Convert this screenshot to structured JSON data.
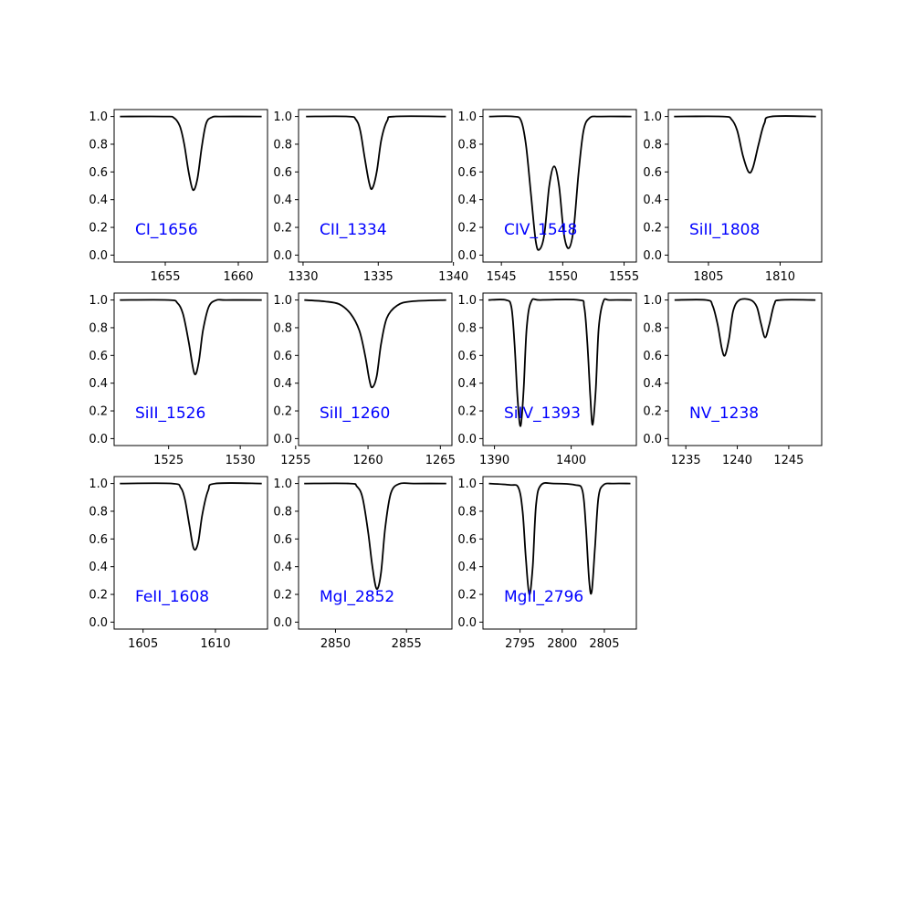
{
  "colors": {
    "line": "#000000",
    "label": "#0000ff",
    "frame": "#000000",
    "background": "#ffffff"
  },
  "chart_data": [
    {
      "type": "line",
      "label": "CI_1656",
      "xlim": [
        1651.5,
        1662.0
      ],
      "xticks": [
        1655,
        1660
      ],
      "ylim": [
        -0.05,
        1.05
      ],
      "yticks": [
        0.0,
        0.2,
        0.4,
        0.6,
        0.8,
        1.0
      ],
      "series": [
        {
          "values": [
            [
              1651.9,
              1.0
            ],
            [
              1655.0,
              1.0
            ],
            [
              1655.6,
              0.99
            ],
            [
              1656.0,
              0.93
            ],
            [
              1656.3,
              0.8
            ],
            [
              1656.6,
              0.6
            ],
            [
              1656.9,
              0.47
            ],
            [
              1657.2,
              0.55
            ],
            [
              1657.5,
              0.78
            ],
            [
              1657.8,
              0.95
            ],
            [
              1658.2,
              0.995
            ],
            [
              1658.8,
              1.0
            ],
            [
              1661.6,
              1.0
            ]
          ]
        }
      ]
    },
    {
      "type": "line",
      "label": "CII_1334",
      "xlim": [
        1329.7,
        1339.9
      ],
      "xticks": [
        1330,
        1335,
        1340
      ],
      "ylim": [
        -0.05,
        1.05
      ],
      "yticks": [
        0.0,
        0.2,
        0.4,
        0.6,
        0.8,
        1.0
      ],
      "series": [
        {
          "values": [
            [
              1330.2,
              1.0
            ],
            [
              1333.0,
              1.0
            ],
            [
              1333.5,
              0.98
            ],
            [
              1333.8,
              0.9
            ],
            [
              1334.1,
              0.7
            ],
            [
              1334.4,
              0.52
            ],
            [
              1334.6,
              0.48
            ],
            [
              1334.9,
              0.6
            ],
            [
              1335.2,
              0.83
            ],
            [
              1335.6,
              0.97
            ],
            [
              1336.1,
              1.0
            ],
            [
              1339.5,
              1.0
            ]
          ]
        }
      ]
    },
    {
      "type": "line",
      "label": "CIV_1548",
      "xlim": [
        1543.5,
        1556.0
      ],
      "xticks": [
        1545,
        1550,
        1555
      ],
      "ylim": [
        -0.05,
        1.05
      ],
      "yticks": [
        0.0,
        0.2,
        0.4,
        0.6,
        0.8,
        1.0
      ],
      "series": [
        {
          "values": [
            [
              1544.0,
              1.0
            ],
            [
              1546.0,
              1.0
            ],
            [
              1546.6,
              0.97
            ],
            [
              1547.0,
              0.8
            ],
            [
              1547.4,
              0.45
            ],
            [
              1547.8,
              0.1
            ],
            [
              1548.1,
              0.04
            ],
            [
              1548.5,
              0.15
            ],
            [
              1548.9,
              0.5
            ],
            [
              1549.3,
              0.64
            ],
            [
              1549.7,
              0.5
            ],
            [
              1550.1,
              0.15
            ],
            [
              1550.5,
              0.05
            ],
            [
              1550.9,
              0.2
            ],
            [
              1551.3,
              0.6
            ],
            [
              1551.7,
              0.9
            ],
            [
              1552.2,
              0.99
            ],
            [
              1553.0,
              1.0
            ],
            [
              1555.6,
              1.0
            ]
          ]
        }
      ]
    },
    {
      "type": "line",
      "label": "SiII_1808",
      "xlim": [
        1802.2,
        1812.9
      ],
      "xticks": [
        1805,
        1810
      ],
      "ylim": [
        -0.05,
        1.05
      ],
      "yticks": [
        0.0,
        0.2,
        0.4,
        0.6,
        0.8,
        1.0
      ],
      "series": [
        {
          "values": [
            [
              1802.6,
              1.0
            ],
            [
              1806.0,
              1.0
            ],
            [
              1806.6,
              0.98
            ],
            [
              1807.0,
              0.9
            ],
            [
              1807.4,
              0.72
            ],
            [
              1807.8,
              0.6
            ],
            [
              1808.1,
              0.63
            ],
            [
              1808.5,
              0.8
            ],
            [
              1808.9,
              0.95
            ],
            [
              1809.4,
              1.0
            ],
            [
              1812.5,
              1.0
            ]
          ]
        }
      ]
    },
    {
      "type": "line",
      "label": "SiII_1526",
      "xlim": [
        1521.2,
        1531.9
      ],
      "xticks": [
        1525,
        1530
      ],
      "ylim": [
        -0.05,
        1.05
      ],
      "yticks": [
        0.0,
        0.2,
        0.4,
        0.6,
        0.8,
        1.0
      ],
      "series": [
        {
          "values": [
            [
              1521.6,
              1.0
            ],
            [
              1525.0,
              1.0
            ],
            [
              1525.6,
              0.98
            ],
            [
              1526.0,
              0.9
            ],
            [
              1526.4,
              0.7
            ],
            [
              1526.8,
              0.47
            ],
            [
              1527.1,
              0.55
            ],
            [
              1527.4,
              0.78
            ],
            [
              1527.8,
              0.95
            ],
            [
              1528.3,
              0.998
            ],
            [
              1529.0,
              1.0
            ],
            [
              1531.5,
              1.0
            ]
          ]
        }
      ]
    },
    {
      "type": "line",
      "label": "SiII_1260",
      "xlim": [
        1255.2,
        1265.8
      ],
      "xticks": [
        1255,
        1260,
        1265
      ],
      "ylim": [
        -0.05,
        1.05
      ],
      "yticks": [
        0.0,
        0.2,
        0.4,
        0.6,
        0.8,
        1.0
      ],
      "series": [
        {
          "values": [
            [
              1255.6,
              1.0
            ],
            [
              1257.0,
              0.99
            ],
            [
              1258.0,
              0.97
            ],
            [
              1258.8,
              0.9
            ],
            [
              1259.4,
              0.78
            ],
            [
              1259.8,
              0.6
            ],
            [
              1260.1,
              0.42
            ],
            [
              1260.3,
              0.37
            ],
            [
              1260.6,
              0.45
            ],
            [
              1260.9,
              0.68
            ],
            [
              1261.3,
              0.87
            ],
            [
              1262.0,
              0.96
            ],
            [
              1263.0,
              0.99
            ],
            [
              1265.4,
              1.0
            ]
          ]
        }
      ]
    },
    {
      "type": "line",
      "label": "SiIV_1393",
      "xlim": [
        1388.5,
        1408.5
      ],
      "xticks": [
        1390,
        1400
      ],
      "ylim": [
        -0.05,
        1.05
      ],
      "yticks": [
        0.0,
        0.2,
        0.4,
        0.6,
        0.8,
        1.0
      ],
      "series": [
        {
          "values": [
            [
              1389.2,
              1.0
            ],
            [
              1391.5,
              1.0
            ],
            [
              1392.2,
              0.95
            ],
            [
              1392.6,
              0.7
            ],
            [
              1393.0,
              0.3
            ],
            [
              1393.4,
              0.09
            ],
            [
              1393.8,
              0.35
            ],
            [
              1394.2,
              0.8
            ],
            [
              1394.8,
              0.99
            ],
            [
              1396.0,
              1.0
            ],
            [
              1401.0,
              1.0
            ],
            [
              1401.7,
              0.95
            ],
            [
              1402.1,
              0.7
            ],
            [
              1402.5,
              0.3
            ],
            [
              1402.8,
              0.1
            ],
            [
              1403.2,
              0.35
            ],
            [
              1403.6,
              0.8
            ],
            [
              1404.2,
              0.99
            ],
            [
              1405.0,
              1.0
            ],
            [
              1407.9,
              1.0
            ]
          ]
        }
      ]
    },
    {
      "type": "line",
      "label": "NV_1238",
      "xlim": [
        1233.3,
        1248.2
      ],
      "xticks": [
        1235,
        1240,
        1245
      ],
      "ylim": [
        -0.05,
        1.05
      ],
      "yticks": [
        0.0,
        0.2,
        0.4,
        0.6,
        0.8,
        1.0
      ],
      "series": [
        {
          "values": [
            [
              1233.9,
              1.0
            ],
            [
              1237.0,
              1.0
            ],
            [
              1237.6,
              0.96
            ],
            [
              1238.1,
              0.82
            ],
            [
              1238.5,
              0.65
            ],
            [
              1238.8,
              0.6
            ],
            [
              1239.2,
              0.72
            ],
            [
              1239.6,
              0.92
            ],
            [
              1240.2,
              1.0
            ],
            [
              1241.3,
              1.0
            ],
            [
              1241.9,
              0.95
            ],
            [
              1242.3,
              0.83
            ],
            [
              1242.7,
              0.73
            ],
            [
              1243.1,
              0.82
            ],
            [
              1243.6,
              0.97
            ],
            [
              1244.2,
              1.0
            ],
            [
              1247.6,
              1.0
            ]
          ]
        }
      ]
    },
    {
      "type": "line",
      "label": "FeII_1608",
      "xlim": [
        1603.0,
        1613.6
      ],
      "xticks": [
        1605,
        1610
      ],
      "ylim": [
        -0.05,
        1.05
      ],
      "yticks": [
        0.0,
        0.2,
        0.4,
        0.6,
        0.8,
        1.0
      ],
      "series": [
        {
          "values": [
            [
              1603.4,
              1.0
            ],
            [
              1607.0,
              1.0
            ],
            [
              1607.6,
              0.97
            ],
            [
              1607.9,
              0.88
            ],
            [
              1608.2,
              0.7
            ],
            [
              1608.5,
              0.53
            ],
            [
              1608.8,
              0.57
            ],
            [
              1609.1,
              0.78
            ],
            [
              1609.5,
              0.95
            ],
            [
              1610.0,
              1.0
            ],
            [
              1613.2,
              1.0
            ]
          ]
        }
      ]
    },
    {
      "type": "line",
      "label": "MgI_2852",
      "xlim": [
        2847.4,
        2858.2
      ],
      "xticks": [
        2850,
        2855
      ],
      "ylim": [
        -0.05,
        1.05
      ],
      "yticks": [
        0.0,
        0.2,
        0.4,
        0.6,
        0.8,
        1.0
      ],
      "series": [
        {
          "values": [
            [
              2847.8,
              1.0
            ],
            [
              2851.0,
              1.0
            ],
            [
              2851.5,
              0.98
            ],
            [
              2851.9,
              0.9
            ],
            [
              2852.3,
              0.65
            ],
            [
              2852.6,
              0.4
            ],
            [
              2852.9,
              0.24
            ],
            [
              2853.2,
              0.35
            ],
            [
              2853.5,
              0.68
            ],
            [
              2853.9,
              0.93
            ],
            [
              2854.5,
              0.998
            ],
            [
              2855.5,
              1.0
            ],
            [
              2857.8,
              1.0
            ]
          ]
        }
      ]
    },
    {
      "type": "line",
      "label": "MgII_2796",
      "xlim": [
        2790.6,
        2808.8
      ],
      "xticks": [
        2795,
        2800,
        2805
      ],
      "ylim": [
        -0.05,
        1.05
      ],
      "yticks": [
        0.0,
        0.2,
        0.4,
        0.6,
        0.8,
        1.0
      ],
      "series": [
        {
          "values": [
            [
              2791.3,
              1.0
            ],
            [
              2793.8,
              0.99
            ],
            [
              2794.8,
              0.97
            ],
            [
              2795.3,
              0.8
            ],
            [
              2795.7,
              0.45
            ],
            [
              2796.1,
              0.2
            ],
            [
              2796.5,
              0.4
            ],
            [
              2796.9,
              0.85
            ],
            [
              2797.5,
              0.99
            ],
            [
              2799.0,
              1.0
            ],
            [
              2801.5,
              0.99
            ],
            [
              2802.4,
              0.95
            ],
            [
              2802.8,
              0.7
            ],
            [
              2803.2,
              0.3
            ],
            [
              2803.5,
              0.22
            ],
            [
              2803.9,
              0.55
            ],
            [
              2804.3,
              0.9
            ],
            [
              2804.9,
              0.99
            ],
            [
              2806.0,
              1.0
            ],
            [
              2808.1,
              1.0
            ]
          ]
        }
      ]
    }
  ]
}
